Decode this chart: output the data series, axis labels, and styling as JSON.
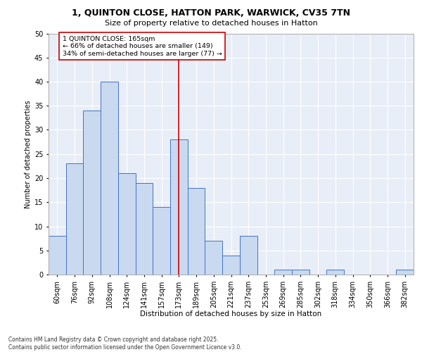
{
  "title_line1": "1, QUINTON CLOSE, HATTON PARK, WARWICK, CV35 7TN",
  "title_line2": "Size of property relative to detached houses in Hatton",
  "xlabel": "Distribution of detached houses by size in Hatton",
  "ylabel": "Number of detached properties",
  "categories": [
    "60sqm",
    "76sqm",
    "92sqm",
    "108sqm",
    "124sqm",
    "141sqm",
    "157sqm",
    "173sqm",
    "189sqm",
    "205sqm",
    "221sqm",
    "237sqm",
    "253sqm",
    "269sqm",
    "285sqm",
    "302sqm",
    "318sqm",
    "334sqm",
    "350sqm",
    "366sqm",
    "382sqm"
  ],
  "values": [
    8,
    23,
    34,
    40,
    21,
    19,
    14,
    28,
    18,
    7,
    4,
    8,
    0,
    1,
    1,
    0,
    1,
    0,
    0,
    0,
    1
  ],
  "bar_color": "#c9d9f0",
  "bar_edge_color": "#4472c4",
  "vline_x": 7,
  "vline_color": "#cc0000",
  "annotation_text": "1 QUINTON CLOSE: 165sqm\n← 66% of detached houses are smaller (149)\n34% of semi-detached houses are larger (77) →",
  "annotation_box_color": "#ffffff",
  "annotation_box_edge": "#cc0000",
  "ylim": [
    0,
    50
  ],
  "yticks": [
    0,
    5,
    10,
    15,
    20,
    25,
    30,
    35,
    40,
    45,
    50
  ],
  "background_color": "#e8eef7",
  "grid_color": "#ffffff",
  "footer": "Contains HM Land Registry data © Crown copyright and database right 2025.\nContains public sector information licensed under the Open Government Licence v3.0."
}
